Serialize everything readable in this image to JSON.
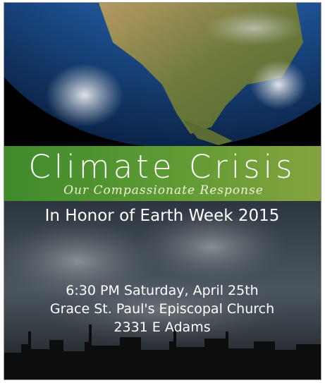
{
  "poster": {
    "title": "Climate Crisis",
    "subtitle": "Our Compassionate Response",
    "occasion": "In Honor of Earth Week 2015",
    "details": [
      "6:30 PM Saturday, April 25th",
      "Grace St. Paul's Episcopal Church",
      "2331 E Adams"
    ]
  }
}
